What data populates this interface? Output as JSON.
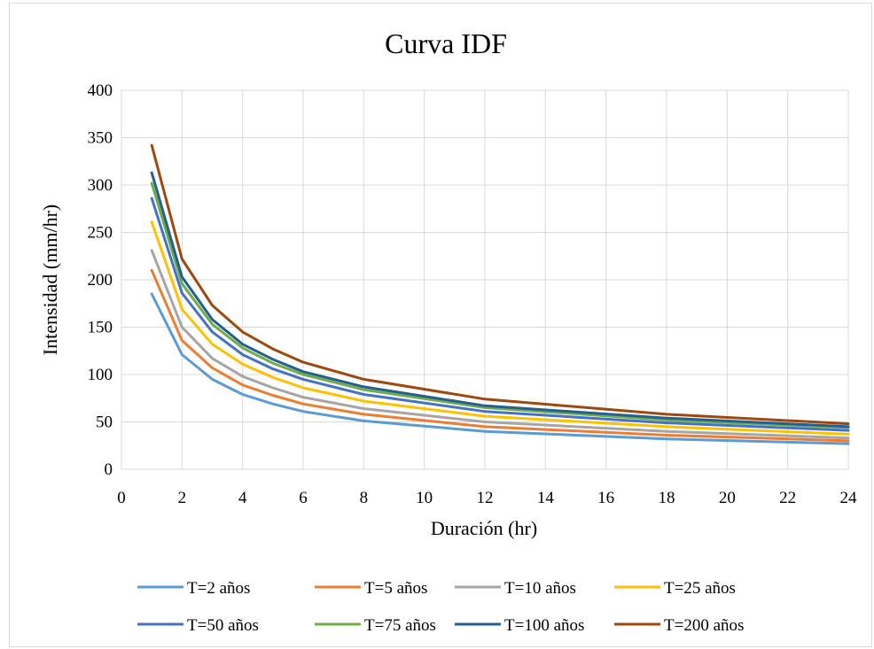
{
  "chart_data": {
    "type": "line",
    "title": "Curva IDF",
    "xlabel": "Duración (hr)",
    "ylabel": "Intensidad (mm/hr)",
    "xlim": [
      0,
      24
    ],
    "ylim": [
      0,
      400
    ],
    "xticks": [
      0,
      2,
      4,
      6,
      8,
      10,
      12,
      14,
      16,
      18,
      20,
      22,
      24
    ],
    "yticks": [
      0,
      50,
      100,
      150,
      200,
      250,
      300,
      350,
      400
    ],
    "grid": true,
    "legend_position": "bottom",
    "x": [
      1,
      2,
      3,
      4,
      5,
      6,
      8,
      12,
      18,
      24
    ],
    "series": [
      {
        "name": "T=2 años",
        "color": "#5B9BD5",
        "values": [
          185,
          121,
          95,
          79,
          69,
          61,
          51,
          40,
          32,
          27
        ]
      },
      {
        "name": "T=5 años",
        "color": "#ED7D31",
        "values": [
          210,
          136,
          107,
          89,
          78,
          69,
          58,
          45,
          36,
          30
        ]
      },
      {
        "name": "T=10 años",
        "color": "#A5A5A5",
        "values": [
          231,
          150,
          117,
          98,
          86,
          76,
          64,
          50,
          40,
          33
        ]
      },
      {
        "name": "T=25 años",
        "color": "#FFC000",
        "values": [
          261,
          169,
          132,
          111,
          97,
          86,
          72,
          56,
          45,
          37
        ]
      },
      {
        "name": "T=50 años",
        "color": "#4472C4",
        "values": [
          286,
          186,
          145,
          121,
          106,
          95,
          79,
          61,
          49,
          41
        ]
      },
      {
        "name": "T=75 años",
        "color": "#70AD47",
        "values": [
          302,
          196,
          153,
          128,
          112,
          100,
          84,
          65,
          52,
          44
        ]
      },
      {
        "name": "T=100 años",
        "color": "#255E91",
        "values": [
          313,
          203,
          158,
          132,
          116,
          103,
          87,
          67,
          54,
          45
        ]
      },
      {
        "name": "T=200 años",
        "color": "#9E480E",
        "values": [
          342,
          222,
          173,
          145,
          127,
          113,
          95,
          74,
          58,
          48
        ]
      }
    ]
  }
}
